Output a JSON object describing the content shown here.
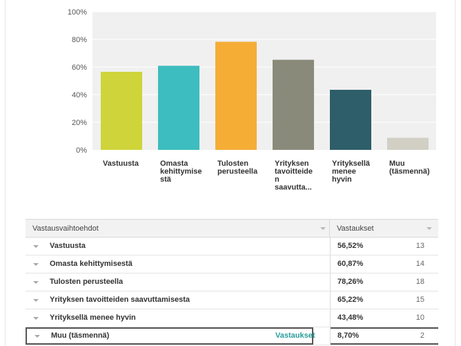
{
  "chart_data": {
    "type": "bar",
    "categories": [
      "Vastuusta",
      "Omasta kehittymisestä",
      "Tulosten perusteella",
      "Yrityksen tavoitteiden saavuttamisesta",
      "Yrityksellä menee hyvin",
      "Muu (täsmennä)"
    ],
    "category_display_lines": [
      [
        "Vastuusta"
      ],
      [
        "Omasta",
        "kehittymise",
        "stä"
      ],
      [
        "Tulosten",
        "perusteella"
      ],
      [
        "Yrityksen",
        "tavoitteide",
        "n",
        "saavutta..."
      ],
      [
        "Yrityksellä",
        "menee",
        "hyvin"
      ],
      [
        "Muu",
        "(täsmennä)"
      ]
    ],
    "values": [
      56.52,
      60.87,
      78.26,
      65.22,
      43.48,
      8.7
    ],
    "colors": [
      "#cfd43a",
      "#3dbdbf",
      "#f5ad36",
      "#898a7a",
      "#2d5e69",
      "#d2cfc4"
    ],
    "yticks": [
      "0%",
      "20%",
      "40%",
      "60%",
      "80%",
      "100%"
    ],
    "ytick_values": [
      0,
      20,
      40,
      60,
      80,
      100
    ],
    "ylim": [
      0,
      100
    ],
    "grid": true,
    "title": "",
    "xlabel": "",
    "ylabel": ""
  },
  "table": {
    "header_choice": "Vastausvaihtoehdot",
    "header_responses": "Vastaukset",
    "rows": [
      {
        "label": "Vastuusta",
        "percent": "56,52%",
        "count": "13"
      },
      {
        "label": "Omasta kehittymisestä",
        "percent": "60,87%",
        "count": "14"
      },
      {
        "label": "Tulosten perusteella",
        "percent": "78,26%",
        "count": "18"
      },
      {
        "label": "Yrityksen tavoitteiden saavuttamisesta",
        "percent": "65,22%",
        "count": "15"
      },
      {
        "label": "Yrityksellä menee hyvin",
        "percent": "43,48%",
        "count": "10"
      },
      {
        "label": "Muu (täsmennä)",
        "percent": "8,70%",
        "count": "2"
      }
    ],
    "selected_row_link": "Vastaukset"
  },
  "colors": {
    "grid_bg": "#f0f0f0",
    "grid_line": "#ffffff",
    "link": "#2a9d9b"
  }
}
